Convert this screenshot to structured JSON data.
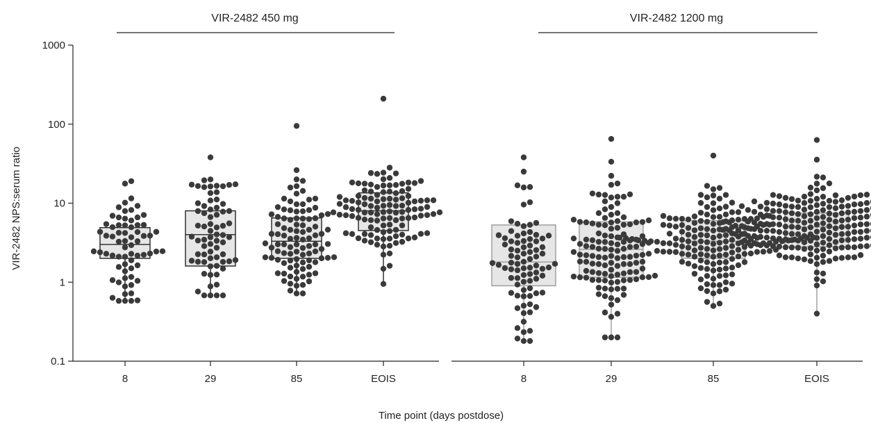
{
  "chart_data": {
    "type": "box-swarm",
    "ylabel": "VIR-2482 NPS:serum ratio",
    "xlabel": "Time point (days postdose)",
    "yscale": "log",
    "ylim": [
      0.1,
      1000
    ],
    "yticks": [
      0.1,
      1,
      10,
      100,
      1000
    ],
    "ytick_labels": [
      "0.1",
      "1",
      "10",
      "100",
      "1000"
    ],
    "categories": [
      "8",
      "29",
      "85",
      "EOIS"
    ],
    "groups": [
      {
        "name": "VIR-2482 450 mg",
        "box_fill": "#e6e6e6",
        "box_stroke": "#222222",
        "boxes": [
          {
            "category": "8",
            "q1": 2.0,
            "median": 3.0,
            "q3": 4.9,
            "whisker_low": 0.58,
            "whisker_high": 4.9
          },
          {
            "category": "29",
            "q1": 1.6,
            "median": 4.0,
            "q3": 8.0,
            "whisker_low": 0.68,
            "whisker_high": 8.0
          },
          {
            "category": "85",
            "q1": 2.0,
            "median": 3.3,
            "q3": 6.5,
            "whisker_low": 0.72,
            "whisker_high": 6.5
          },
          {
            "category": "EOIS",
            "q1": 4.5,
            "median": 8.0,
            "q3": 13.5,
            "whisker_low": 0.95,
            "whisker_high": 13.5
          }
        ],
        "points": [
          {
            "category": "8",
            "n": 68,
            "median": 3.0,
            "spread": 0.38,
            "max": 19,
            "min": 0.58
          },
          {
            "category": "29",
            "n": 70,
            "median": 4.0,
            "spread": 0.42,
            "max": 38,
            "min": 0.68
          },
          {
            "category": "85",
            "n": 100,
            "median": 3.3,
            "spread": 0.36,
            "max": 95,
            "min": 0.72
          },
          {
            "category": "EOIS",
            "n": 120,
            "median": 8.0,
            "spread": 0.32,
            "max": 210,
            "min": 0.95
          }
        ]
      },
      {
        "name": "VIR-2482 1200 mg",
        "box_fill": "#e6e6e6",
        "box_stroke": "#999999",
        "boxes": [
          {
            "category": "8",
            "q1": 0.9,
            "median": 1.8,
            "q3": 5.3,
            "whisker_low": 0.18,
            "whisker_high": 5.3
          },
          {
            "category": "29",
            "q1": 1.15,
            "median": 2.6,
            "q3": 5.8,
            "whisker_low": 0.2,
            "whisker_high": 5.8
          },
          {
            "category": "85",
            "q1": 2.0,
            "median": 3.3,
            "q3": 6.0,
            "whisker_low": 0.5,
            "whisker_high": 6.0
          },
          {
            "category": "EOIS",
            "q1": 2.8,
            "median": 5.0,
            "q3": 7.5,
            "whisker_low": 0.4,
            "whisker_high": 7.5
          }
        ],
        "points": [
          {
            "category": "8",
            "n": 85,
            "median": 1.8,
            "spread": 0.42,
            "max": 38,
            "min": 0.18
          },
          {
            "category": "29",
            "n": 130,
            "median": 2.6,
            "spread": 0.4,
            "max": 65,
            "min": 0.2
          },
          {
            "category": "85",
            "n": 175,
            "median": 3.3,
            "spread": 0.3,
            "max": 40,
            "min": 0.5
          },
          {
            "category": "EOIS",
            "n": 230,
            "median": 5.0,
            "spread": 0.26,
            "max": 63,
            "min": 0.4
          }
        ]
      }
    ],
    "colors": {
      "point": "#3a3a3a",
      "axis": "#222222"
    }
  }
}
